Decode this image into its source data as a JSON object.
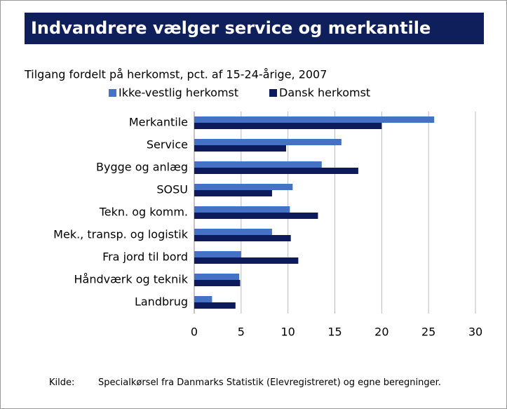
{
  "chart_data": {
    "type": "hbar",
    "title": "Indvandrere vælger service og merkantile",
    "subtitle": "Tilgang fordelt på herkomst, pct. af 15-24-årige, 2007",
    "categories": [
      "Merkantile",
      "Service",
      "Bygge og anlæg",
      "SOSU",
      "Tekn. og komm.",
      "Mek., transp. og logistik",
      "Fra jord til bord",
      "Håndværk og teknik",
      "Landbrug"
    ],
    "series": [
      {
        "name": "Ikke-vestlig herkomst",
        "color": "#4472c4",
        "values": [
          25.6,
          15.7,
          13.6,
          10.5,
          10.2,
          8.3,
          5.0,
          4.8,
          1.9
        ]
      },
      {
        "name": "Dansk herkomst",
        "color": "#0d1a5c",
        "values": [
          20.0,
          9.8,
          17.5,
          8.3,
          13.2,
          10.3,
          11.1,
          4.9,
          4.4
        ]
      }
    ],
    "xlim": [
      0,
      30
    ],
    "xticks": [
      0,
      5,
      10,
      15,
      20,
      25,
      30
    ],
    "grid": true,
    "source_label": "Kilde:",
    "source": "Specialkørsel fra Danmarks Statistik (Elevregistreret) og egne beregninger."
  }
}
